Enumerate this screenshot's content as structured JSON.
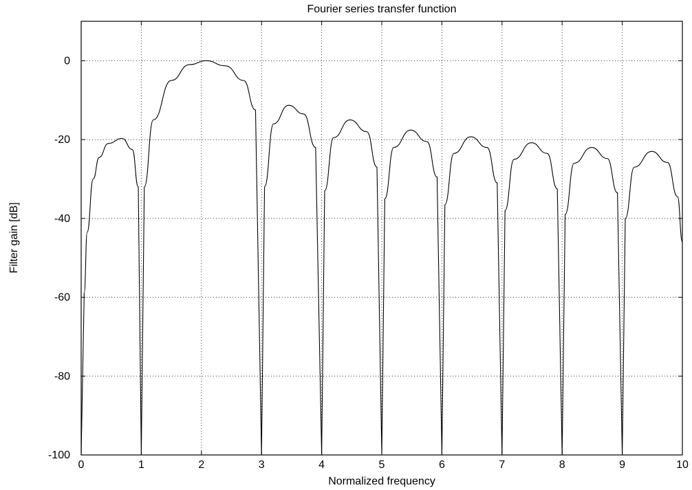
{
  "chart_data": {
    "type": "line",
    "title": "Fourier series transfer function",
    "xlabel": "Normalized frequency",
    "ylabel": "Filter gain [dB]",
    "xlim": [
      0,
      10
    ],
    "ylim": [
      -100,
      10
    ],
    "grid": true,
    "x_ticks": [
      "0",
      "1",
      "2",
      "3",
      "4",
      "5",
      "6",
      "7",
      "8",
      "9",
      "10"
    ],
    "y_ticks": [
      "0",
      "-20",
      "-40",
      "-60",
      "-80",
      "-100"
    ],
    "y_tick_values": [
      0,
      -20,
      -40,
      -60,
      -80,
      -100
    ],
    "series": [
      {
        "nulls_at": [
          0,
          1,
          3,
          4,
          5,
          6,
          7,
          8,
          9
        ],
        "lobe_peaks": [
          {
            "x": 0.68,
            "y": -19.7
          },
          {
            "x": 2.08,
            "y": 0.0
          },
          {
            "x": 3.45,
            "y": -11.3
          },
          {
            "x": 4.47,
            "y": -15.0
          },
          {
            "x": 5.48,
            "y": -17.6
          },
          {
            "x": 6.48,
            "y": -19.3
          },
          {
            "x": 7.49,
            "y": -20.8
          },
          {
            "x": 8.49,
            "y": -22.0
          },
          {
            "x": 9.49,
            "y": -23.0
          }
        ],
        "values_db": [
          [
            0.05,
            -59.0
          ],
          [
            0.1,
            -43.5
          ],
          [
            0.2,
            -30.0
          ],
          [
            0.3,
            -24.5
          ],
          [
            0.45,
            -21.0
          ],
          [
            0.68,
            -19.7
          ],
          [
            0.85,
            -22.5
          ],
          [
            0.95,
            -32.0
          ],
          [
            1.0,
            -100
          ],
          [
            1.05,
            -32.0
          ],
          [
            1.2,
            -15.0
          ],
          [
            1.5,
            -5.0
          ],
          [
            1.8,
            -1.0
          ],
          [
            2.08,
            0.0
          ],
          [
            2.4,
            -1.3
          ],
          [
            2.7,
            -5.0
          ],
          [
            2.9,
            -12.5
          ],
          [
            3.0,
            -100
          ],
          [
            3.05,
            -32.0
          ],
          [
            3.2,
            -16.0
          ],
          [
            3.45,
            -11.3
          ],
          [
            3.7,
            -13.5
          ],
          [
            3.9,
            -22.0
          ],
          [
            4.0,
            -100
          ],
          [
            4.05,
            -33.0
          ],
          [
            4.2,
            -19.5
          ],
          [
            4.47,
            -15.0
          ],
          [
            4.75,
            -18.0
          ],
          [
            4.92,
            -27.0
          ],
          [
            5.0,
            -100
          ],
          [
            5.05,
            -35.0
          ],
          [
            5.2,
            -22.0
          ],
          [
            5.48,
            -17.6
          ],
          [
            5.75,
            -20.5
          ],
          [
            5.92,
            -29.5
          ],
          [
            6.0,
            -100
          ],
          [
            6.05,
            -36.5
          ],
          [
            6.2,
            -23.5
          ],
          [
            6.48,
            -19.3
          ],
          [
            6.75,
            -22.0
          ],
          [
            6.92,
            -31.0
          ],
          [
            7.0,
            -100
          ],
          [
            7.05,
            -38.0
          ],
          [
            7.2,
            -25.0
          ],
          [
            7.49,
            -20.8
          ],
          [
            7.75,
            -23.5
          ],
          [
            7.92,
            -32.5
          ],
          [
            8.0,
            -100
          ],
          [
            8.05,
            -39.0
          ],
          [
            8.2,
            -26.0
          ],
          [
            8.49,
            -22.0
          ],
          [
            8.75,
            -24.8
          ],
          [
            8.92,
            -33.5
          ],
          [
            9.0,
            -100
          ],
          [
            9.05,
            -40.0
          ],
          [
            9.2,
            -27.0
          ],
          [
            9.49,
            -23.0
          ],
          [
            9.75,
            -25.8
          ],
          [
            9.92,
            -34.5
          ],
          [
            10.0,
            -46.0
          ]
        ]
      }
    ]
  }
}
